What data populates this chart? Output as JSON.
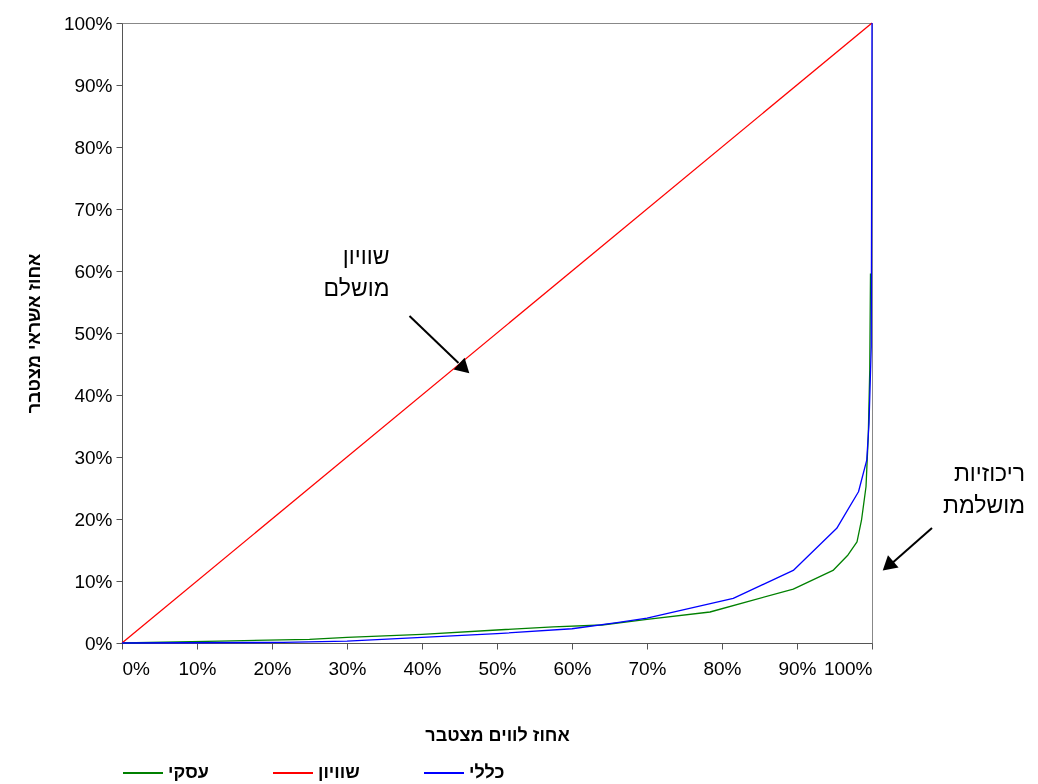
{
  "chart_data": {
    "type": "line",
    "xlabel": "אחוז לווים מצטבר",
    "ylabel": "אחוז אשראי מצטבר",
    "legend": "bottom",
    "xlim": [
      0,
      100
    ],
    "ylim": [
      0,
      100
    ],
    "xticks": [
      {
        "value": 0,
        "label": "0%"
      },
      {
        "value": 10,
        "label": "10%"
      },
      {
        "value": 20,
        "label": "20%"
      },
      {
        "value": 30,
        "label": "30%"
      },
      {
        "value": 40,
        "label": "40%"
      },
      {
        "value": 50,
        "label": "50%"
      },
      {
        "value": 60,
        "label": "60%"
      },
      {
        "value": 70,
        "label": "70%"
      },
      {
        "value": 80,
        "label": "80%"
      },
      {
        "value": 90,
        "label": "90%"
      },
      {
        "value": 100,
        "label": "100%"
      }
    ],
    "yticks": [
      {
        "value": 0,
        "label": "0%"
      },
      {
        "value": 10,
        "label": "10%"
      },
      {
        "value": 20,
        "label": "20%"
      },
      {
        "value": 30,
        "label": "30%"
      },
      {
        "value": 40,
        "label": "40%"
      },
      {
        "value": 50,
        "label": "50%"
      },
      {
        "value": 60,
        "label": "60%"
      },
      {
        "value": 70,
        "label": "70%"
      },
      {
        "value": 80,
        "label": "80%"
      },
      {
        "value": 90,
        "label": "90%"
      },
      {
        "value": 100,
        "label": "100%"
      }
    ],
    "series": [
      {
        "name": "עסקי",
        "color": "#008000",
        "x": [
          0,
          13,
          25,
          30,
          40,
          50,
          57.5,
          64,
          70,
          78.4,
          89.5,
          94.8,
          96.8,
          98,
          98.6,
          99.2,
          99.5,
          99.7,
          99.8
        ],
        "values": [
          0,
          0.3,
          0.6,
          0.9,
          1.4,
          2.1,
          2.6,
          2.9,
          3.8,
          5,
          8.7,
          11.7,
          14.2,
          16.3,
          19.8,
          25.2,
          33.3,
          44,
          59.6
        ]
      },
      {
        "name": "שוויון",
        "color": "#ff0000",
        "x": [
          0,
          100
        ],
        "values": [
          0,
          100
        ]
      },
      {
        "name": "כללי",
        "color": "#0000ff",
        "x": [
          0,
          21.5,
          30,
          40,
          50,
          60,
          66,
          70,
          81.5,
          89.5,
          95.3,
          98.2,
          99.3,
          99.6,
          99.9,
          100
        ],
        "values": [
          0,
          0.1,
          0.3,
          0.9,
          1.5,
          2.3,
          3.3,
          4,
          7.2,
          11.7,
          18.5,
          24.4,
          29.5,
          35.4,
          47.8,
          100
        ]
      }
    ],
    "annotations": [
      {
        "text": "שוויון מושלם",
        "x": 45,
        "y": 45
      },
      "ריכוזיות מושלמת"
    ]
  }
}
